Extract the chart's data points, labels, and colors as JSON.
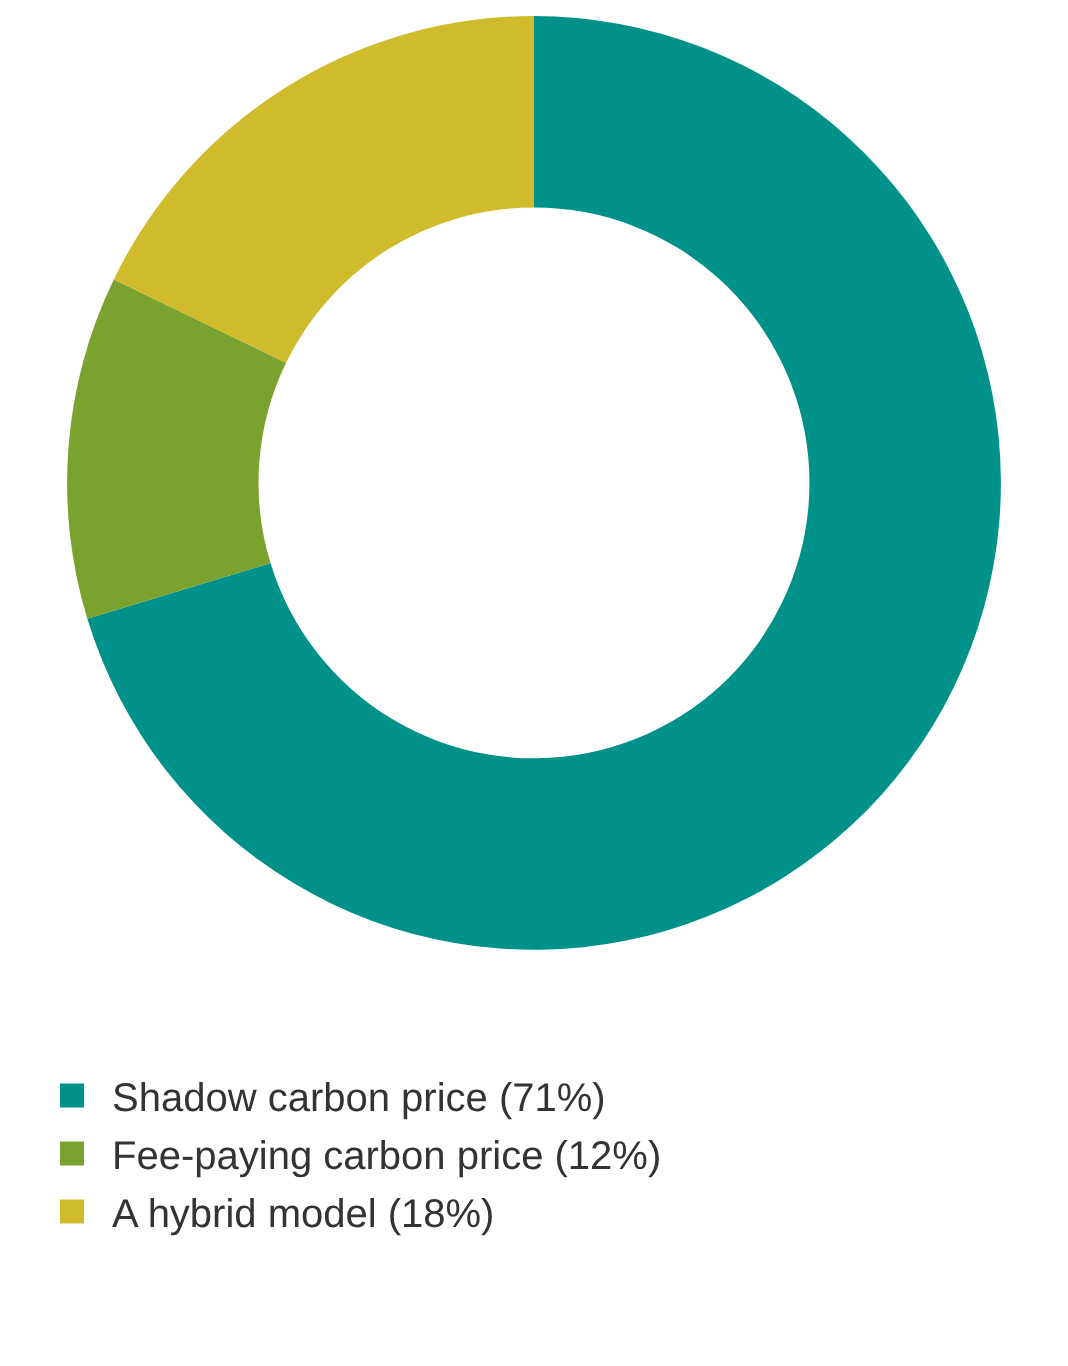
{
  "chart_data": {
    "type": "donut",
    "categories": [
      "Shadow carbon price (71%)",
      "Fee-paying carbon price (12%)",
      "A hybrid model (18%)"
    ],
    "values": [
      71,
      12,
      18
    ],
    "colors": [
      "#00918a",
      "#7aa22f",
      "#cfbb2b"
    ],
    "legend": "bottom"
  }
}
